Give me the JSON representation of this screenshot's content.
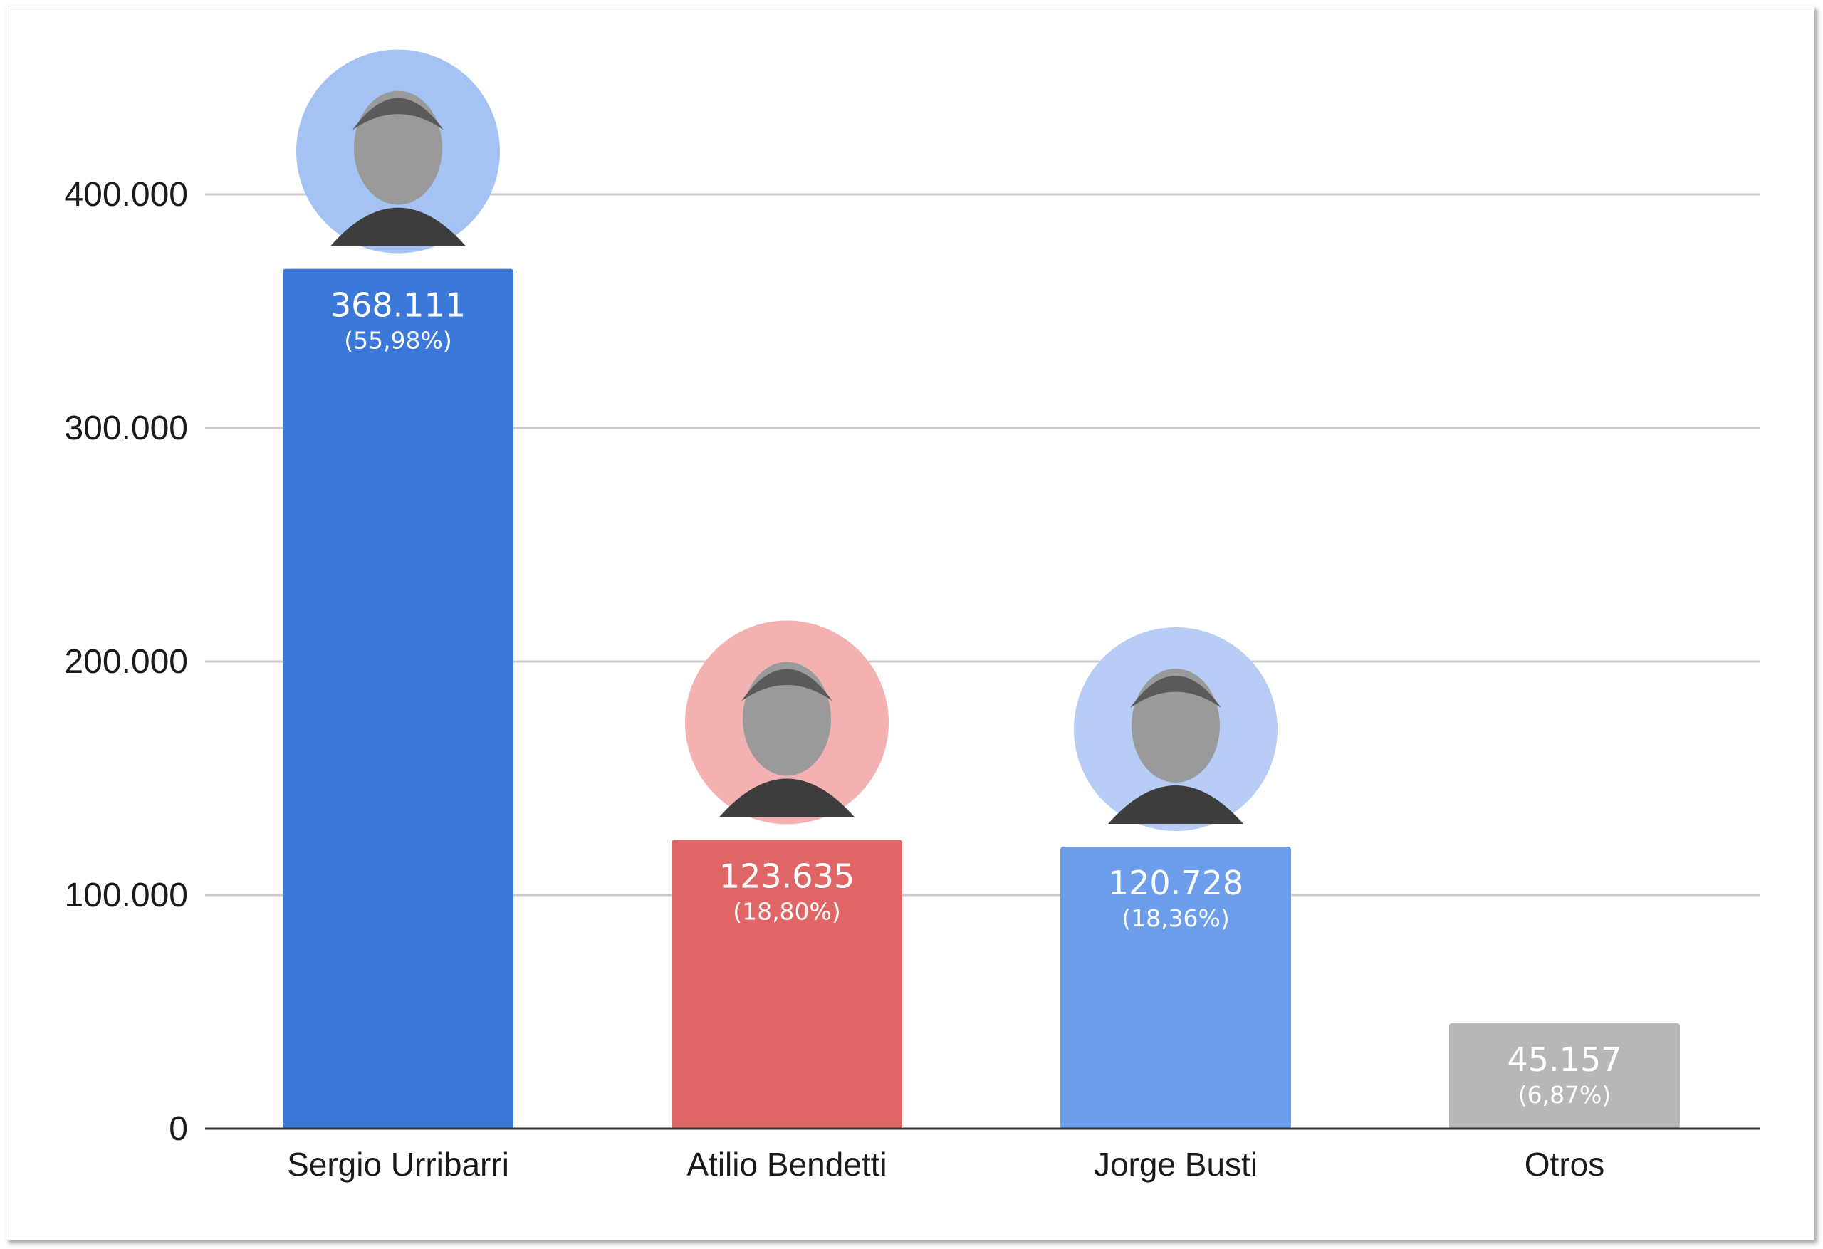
{
  "chart_data": {
    "type": "bar",
    "title": "",
    "xlabel": "",
    "ylabel": "",
    "ylim": [
      0,
      400000
    ],
    "yticks": [
      0,
      100000,
      200000,
      300000,
      400000
    ],
    "ytick_labels": [
      "0",
      "100.000",
      "200.000",
      "300.000",
      "400.000"
    ],
    "grid": true,
    "legend": "none",
    "categories": [
      "Sergio Urribarri",
      "Atilio Bendetti",
      "Jorge Busti",
      "Otros"
    ],
    "values": [
      368111,
      123635,
      120728,
      45157
    ],
    "value_labels": [
      "368.111",
      "123.635",
      "120.728",
      "45.157"
    ],
    "percent_labels": [
      "(55,98%)",
      "(18,80%)",
      "(18,36%)",
      "(6,87%)"
    ],
    "colors": [
      "#3c78d8",
      "#e06666",
      "#6d9eeb",
      "#b7b7b7"
    ],
    "portrait_ring_colors": [
      "#a4c2f4",
      "#f4b1b1",
      "#b7cdf6",
      null
    ]
  }
}
